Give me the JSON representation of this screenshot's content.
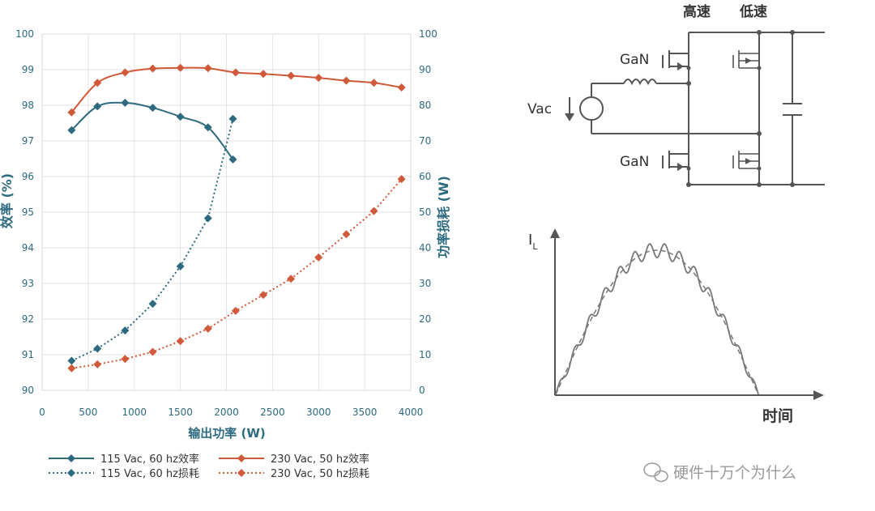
{
  "chart_data": {
    "type": "line",
    "xlabel": "输出功率 (W)",
    "ylabel_left": "效率 (%)",
    "ylabel_right": "功率损耗 (W)",
    "xlim": [
      0,
      4000
    ],
    "ylim_left": [
      90,
      100
    ],
    "ylim_right": [
      0,
      100
    ],
    "x_ticks": [
      "0",
      "500",
      "1000",
      "1500",
      "2000",
      "2500",
      "3000",
      "3500",
      "4000"
    ],
    "y_left_ticks": [
      "90",
      "91",
      "92",
      "93",
      "94",
      "95",
      "96",
      "97",
      "98",
      "99",
      "100"
    ],
    "y_right_ticks": [
      "0",
      "10",
      "20",
      "30",
      "40",
      "50",
      "60",
      "70",
      "80",
      "90",
      "100"
    ],
    "legend_position": "bottom",
    "grid": true,
    "series": [
      {
        "name": "115 Vac, 60 hz效率",
        "axis": "left",
        "style": "solid",
        "color": "#2d6a7f",
        "x": [
          320,
          600,
          900,
          1200,
          1500,
          1800,
          2070
        ],
        "y": [
          97.3,
          97.97,
          98.07,
          97.93,
          97.68,
          97.38,
          96.48
        ]
      },
      {
        "name": "230 Vac, 50 hz效率",
        "axis": "left",
        "style": "solid",
        "color": "#d0593a",
        "x": [
          320,
          600,
          900,
          1200,
          1500,
          1800,
          2100,
          2400,
          2700,
          3000,
          3300,
          3600,
          3900
        ],
        "y": [
          97.8,
          98.63,
          98.92,
          99.03,
          99.05,
          99.04,
          98.92,
          98.88,
          98.83,
          98.77,
          98.69,
          98.63,
          98.5
        ]
      },
      {
        "name": "115 Vac, 60 hz损耗",
        "axis": "right",
        "style": "dotted",
        "color": "#2d6a7f",
        "x": [
          320,
          600,
          900,
          1200,
          1500,
          1800,
          2070
        ],
        "y": [
          8.3,
          11.7,
          16.8,
          24.3,
          34.8,
          48.3,
          76.2
        ]
      },
      {
        "name": "230 Vac, 50 hz损耗",
        "axis": "right",
        "style": "dotted",
        "color": "#d0593a",
        "x": [
          320,
          600,
          900,
          1200,
          1500,
          1800,
          2100,
          2400,
          2700,
          3000,
          3300,
          3600,
          3900
        ],
        "y": [
          6.2,
          7.3,
          8.8,
          10.8,
          13.8,
          17.3,
          22.3,
          26.8,
          31.3,
          37.3,
          43.8,
          50.3,
          59.3
        ]
      }
    ]
  },
  "circuit": {
    "label_high_speed": "高速",
    "label_low_speed": "低速",
    "label_gan_top": "GaN",
    "label_gan_bottom": "GaN",
    "label_vac": "Vac"
  },
  "waveform": {
    "y_label": "I",
    "y_label_sub": "L",
    "x_label": "时间"
  },
  "watermark": {
    "text": "硬件十万个为什么"
  },
  "colors": {
    "teal": "#2d6a7f",
    "orange": "#d0593a",
    "circuit_gray": "#555555"
  }
}
